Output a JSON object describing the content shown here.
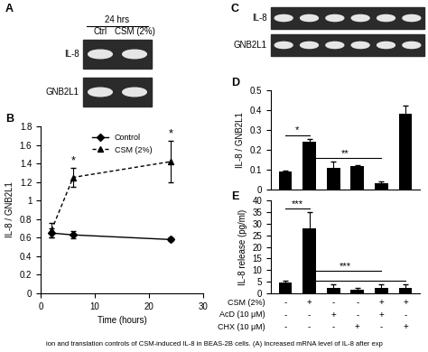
{
  "caption": "ion and translation controls of CSM-induced IL-8 in BEAS-2B cells. (A) Increased mRNA level of IL-8 after exp",
  "chart_data": [
    {
      "panel": "A",
      "type": "gel",
      "header": "24 hrs",
      "lanes": [
        "Ctrl",
        "CSM (2%)"
      ],
      "rows": [
        "IL-8",
        "GNB2L1"
      ]
    },
    {
      "panel": "B",
      "type": "line",
      "x_label": "Time (hours)",
      "y_label": "IL-8 / GNB2L1",
      "xlim": [
        0,
        30
      ],
      "xticks": [
        0,
        10,
        20,
        30
      ],
      "ylim": [
        0,
        1.8
      ],
      "yticks": [
        0,
        0.2,
        0.4,
        0.6,
        0.8,
        1,
        1.2,
        1.4,
        1.6,
        1.8
      ],
      "legend": "upper center",
      "series": [
        {
          "name": "Control",
          "color": "#000000",
          "marker": "diamond",
          "line_style": "solid",
          "x": [
            2,
            6,
            24
          ],
          "values": [
            0.65,
            0.63,
            0.58
          ],
          "errors": [
            0.05,
            0.04,
            0.02
          ]
        },
        {
          "name": "CSM (2%)",
          "color": "#000000",
          "marker": "triangle",
          "line_style": "dashed",
          "x": [
            2,
            6,
            24
          ],
          "values": [
            0.68,
            1.25,
            1.42
          ],
          "errors": [
            0.08,
            0.1,
            0.22
          ]
        }
      ],
      "annotations": [
        {
          "text": "*",
          "x": 6
        },
        {
          "text": "*",
          "x": 24
        }
      ]
    },
    {
      "panel": "C",
      "type": "gel",
      "lanes": [
        null,
        null,
        null,
        null,
        null,
        null
      ],
      "rows": [
        "IL-8",
        "GNB2L1"
      ]
    },
    {
      "panel": "D",
      "type": "bar",
      "y_label": "IL-8 / GNB2L1",
      "categories": [
        null,
        null,
        null,
        null,
        null,
        null
      ],
      "values": [
        0.09,
        0.24,
        0.11,
        0.12,
        0.03,
        0.38
      ],
      "errors": [
        0.005,
        0.015,
        0.03,
        0.005,
        0.01,
        0.045
      ],
      "color": "#000000",
      "ylim": [
        0,
        0.5
      ],
      "yticks": [
        0,
        0.1,
        0.2,
        0.3,
        0.4,
        0.5
      ],
      "annotations": [
        {
          "text": "*",
          "from": 0,
          "to": 1
        },
        {
          "text": "**",
          "from": 1,
          "to": 4
        }
      ]
    },
    {
      "panel": "E",
      "type": "bar",
      "y_label": "IL-8 release (pg/ml)",
      "categories": [
        null,
        null,
        null,
        null,
        null,
        null
      ],
      "values": [
        4.5,
        28,
        2.5,
        1.5,
        2.5,
        2.5
      ],
      "errors": [
        1,
        7,
        1.5,
        1,
        1.5,
        1.5
      ],
      "color": "#000000",
      "ylim": [
        0,
        40
      ],
      "yticks": [
        0,
        5,
        10,
        15,
        20,
        25,
        30,
        35,
        40
      ],
      "annotations": [
        {
          "text": "***",
          "from": 0,
          "to": 1
        },
        {
          "from": 1,
          "to": 5
        },
        {
          "text": "***",
          "from": 1,
          "to": 4
        }
      ],
      "treatments": [
        {
          "name": "CSM (2%)",
          "marks": [
            "-",
            "+",
            "-",
            "-",
            "+",
            "+"
          ]
        },
        {
          "name": "AcD (10 μM)",
          "marks": [
            "-",
            "-",
            "+",
            "-",
            "+",
            "-"
          ]
        },
        {
          "name": "CHX (10 μM)",
          "marks": [
            "-",
            "-",
            "-",
            "+",
            "-",
            "+"
          ]
        }
      ]
    }
  ]
}
